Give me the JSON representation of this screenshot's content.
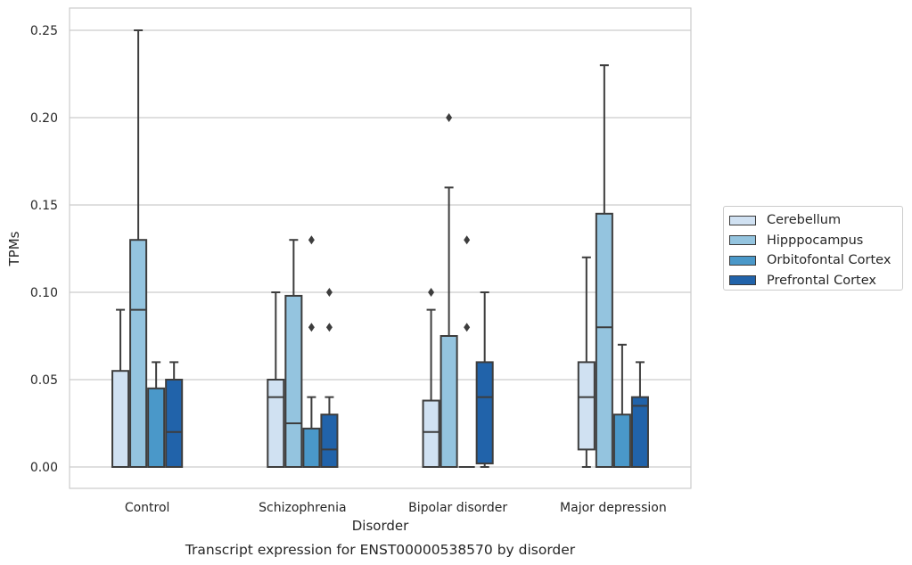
{
  "chart_data": {
    "type": "box",
    "title": "Transcript expression for ENST00000538570 by disorder",
    "xlabel": "Disorder",
    "ylabel": "TPMs",
    "ylim": [
      -0.012,
      0.263
    ],
    "yticks": [
      "0.00",
      "0.05",
      "0.10",
      "0.15",
      "0.20",
      "0.25"
    ],
    "ytick_values": [
      0,
      0.05,
      0.1,
      0.15,
      0.2,
      0.25
    ],
    "grid": "horizontal",
    "legend_position": "right",
    "categories": [
      "Control",
      "Schizophrenia",
      "Bipolar disorder",
      "Major depression"
    ],
    "series": [
      {
        "name": "Cerebellum",
        "color": "#d0e1f2",
        "boxes": [
          {
            "min": 0,
            "q1": 0,
            "median": 0,
            "q3": 0.055,
            "max": 0.09,
            "outliers": []
          },
          {
            "min": 0,
            "q1": 0,
            "median": 0.04,
            "q3": 0.05,
            "max": 0.1,
            "outliers": []
          },
          {
            "min": 0,
            "q1": 0,
            "median": 0.02,
            "q3": 0.038,
            "max": 0.09,
            "outliers": [
              0.1
            ]
          },
          {
            "min": 0,
            "q1": 0.01,
            "median": 0.04,
            "q3": 0.06,
            "max": 0.12,
            "outliers": []
          }
        ]
      },
      {
        "name": "Hipppocampus",
        "color": "#94c4df",
        "boxes": [
          {
            "min": 0,
            "q1": 0,
            "median": 0.09,
            "q3": 0.13,
            "max": 0.25,
            "outliers": []
          },
          {
            "min": 0,
            "q1": 0,
            "median": 0.025,
            "q3": 0.098,
            "max": 0.13,
            "outliers": []
          },
          {
            "min": 0,
            "q1": 0,
            "median": 0,
            "q3": 0.075,
            "max": 0.16,
            "outliers": [
              0.2
            ]
          },
          {
            "min": 0,
            "q1": 0,
            "median": 0.08,
            "q3": 0.145,
            "max": 0.23,
            "outliers": []
          }
        ]
      },
      {
        "name": "Orbitofontal Cortex",
        "color": "#4a98c9",
        "boxes": [
          {
            "min": 0,
            "q1": 0,
            "median": 0,
            "q3": 0.045,
            "max": 0.06,
            "outliers": []
          },
          {
            "min": 0,
            "q1": 0,
            "median": 0,
            "q3": 0.022,
            "max": 0.04,
            "outliers": [
              0.08,
              0.13
            ]
          },
          {
            "min": 0,
            "q1": 0,
            "median": 0,
            "q3": 0,
            "max": 0,
            "outliers": [
              0.08,
              0.13
            ]
          },
          {
            "min": 0,
            "q1": 0,
            "median": 0,
            "q3": 0.03,
            "max": 0.07,
            "outliers": []
          }
        ]
      },
      {
        "name": "Prefrontal Cortex",
        "color": "#2163aa",
        "boxes": [
          {
            "min": 0,
            "q1": 0,
            "median": 0.02,
            "q3": 0.05,
            "max": 0.06,
            "outliers": []
          },
          {
            "min": 0,
            "q1": 0,
            "median": 0.01,
            "q3": 0.03,
            "max": 0.04,
            "outliers": [
              0.08,
              0.1
            ]
          },
          {
            "min": 0,
            "q1": 0.002,
            "median": 0.04,
            "q3": 0.06,
            "max": 0.1,
            "outliers": []
          },
          {
            "min": 0,
            "q1": 0,
            "median": 0.035,
            "q3": 0.04,
            "max": 0.06,
            "outliers": []
          }
        ]
      }
    ]
  }
}
